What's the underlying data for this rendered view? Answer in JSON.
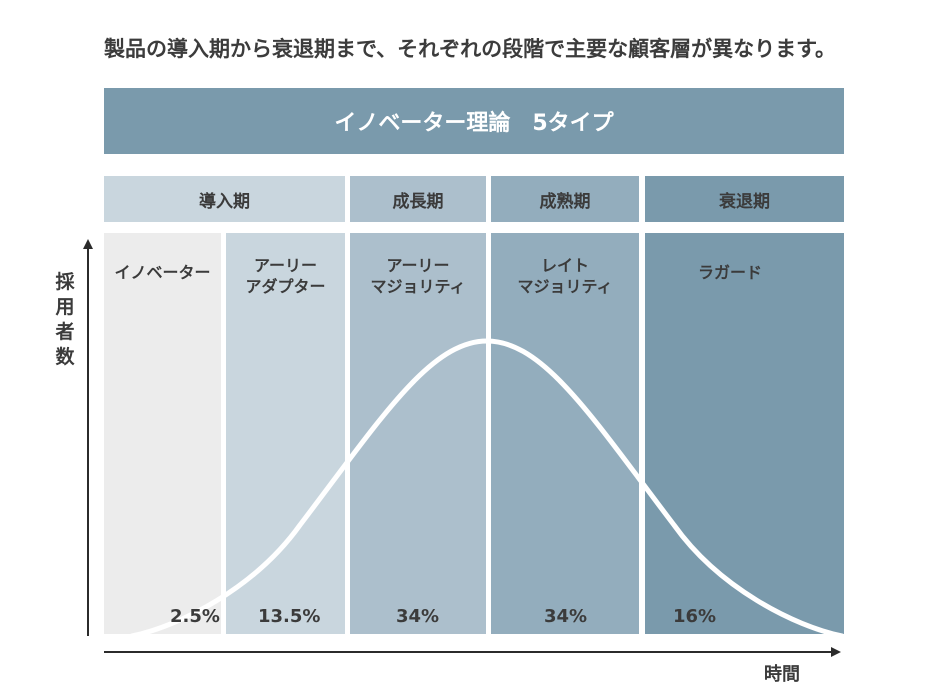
{
  "caption": "製品の導入期から衰退期まで、それぞれの段階で主要な顧客層が異なります。",
  "title": "イノベーター理論　5タイプ",
  "axes": {
    "y_label": "採用者数",
    "x_label": "時間"
  },
  "phases": [
    {
      "label": "導入期",
      "color": "#c9d6de"
    },
    {
      "label": "成長期",
      "color": "#acbfcc"
    },
    {
      "label": "成熟期",
      "color": "#93adbd"
    },
    {
      "label": "衰退期",
      "color": "#7a9aac"
    }
  ],
  "segments": [
    {
      "label": "イノベーター",
      "percent": "2.5%",
      "color": "#ececec"
    },
    {
      "label": "アーリー\nアダプター",
      "percent": "13.5%",
      "color": "#c9d6de"
    },
    {
      "label": "アーリー\nマジョリティ",
      "percent": "34%",
      "color": "#acbfcc"
    },
    {
      "label": "レイト\nマジョリティ",
      "percent": "34%",
      "color": "#93adbd"
    },
    {
      "label": "ラガード",
      "percent": "16%",
      "color": "#7a9aac"
    }
  ]
}
